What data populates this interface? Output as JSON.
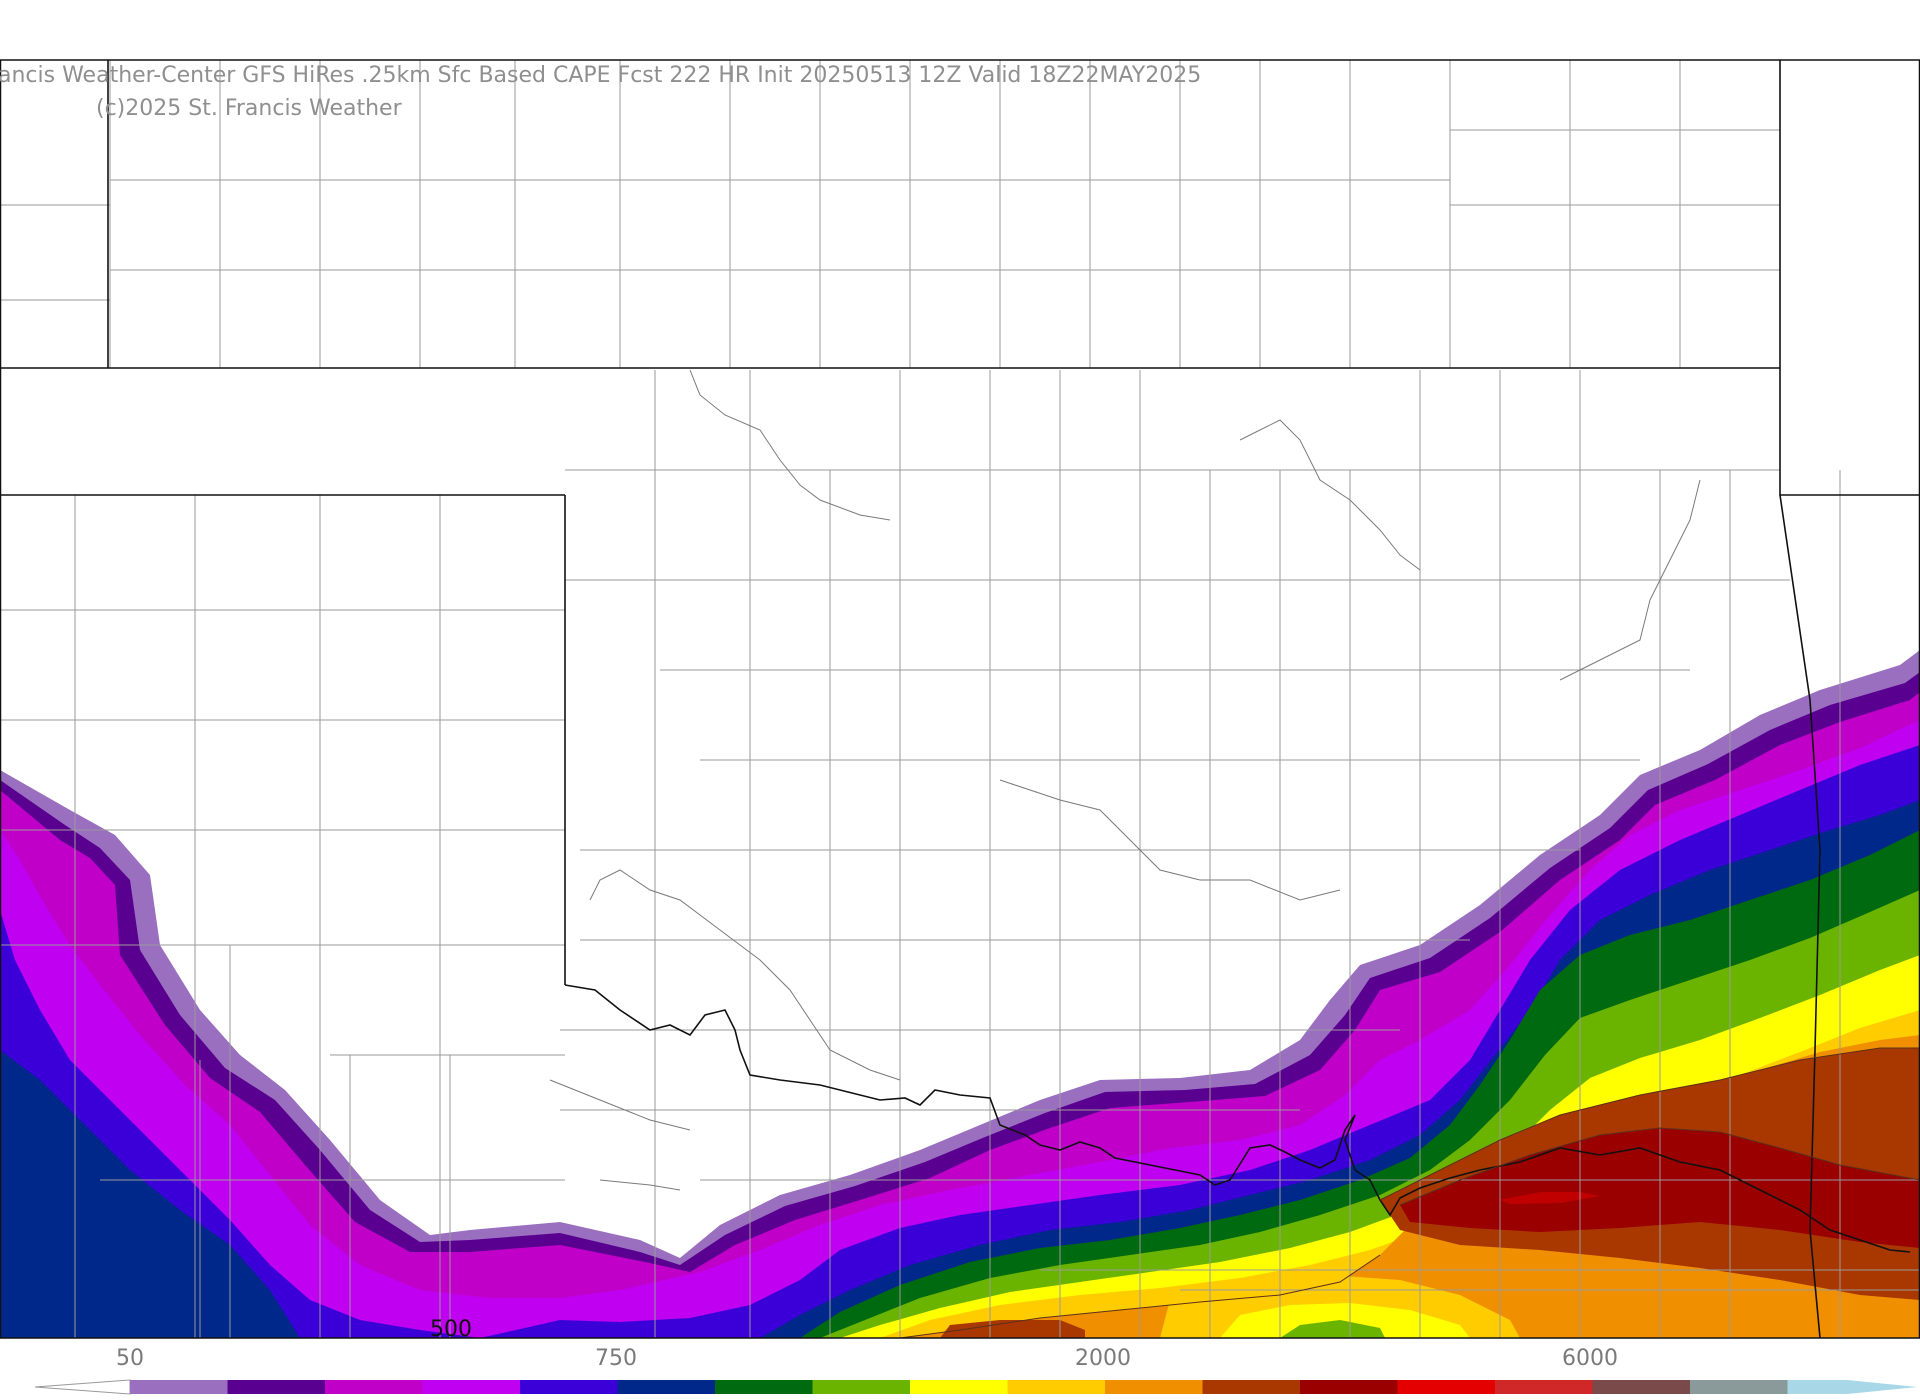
{
  "header": {
    "title": "ancis Weather-Center GFS HiRes .25km Sfc Based CAPE  Fcst 222 HR Init 20250513 12Z  Valid 18Z22MAY2025",
    "copyright": "(c)2025 St. Francis Weather"
  },
  "map": {
    "contour_label": "500"
  },
  "legend": {
    "tick_labels": [
      "50",
      "750",
      "2000",
      "6000"
    ],
    "colors": [
      "#9a6fc0",
      "#5a0090",
      "#c000c8",
      "#c000f0",
      "#3b00d8",
      "#00288a",
      "#006a10",
      "#6ab400",
      "#ffff00",
      "#ffcc00",
      "#f09000",
      "#a83800",
      "#9a0000",
      "#e40000",
      "#d02828",
      "#7a4a4a",
      "#8a9a9a",
      "#a8d8e8"
    ]
  }
}
